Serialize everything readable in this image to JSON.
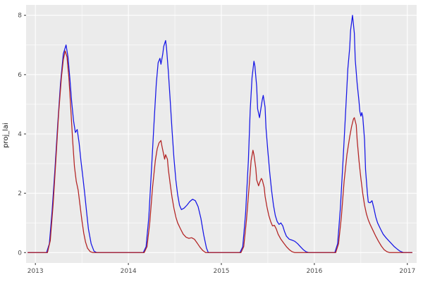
{
  "chart_data": {
    "type": "line",
    "title": "",
    "xlabel": "",
    "ylabel": "proj_lai",
    "style": "ggplot",
    "panel_bg": "#EBEBEB",
    "grid_color": "#FFFFFF",
    "tick_color": "#333333",
    "tick_label_color": "#4d4d4d",
    "legend": "none",
    "xlim": [
      2012.9,
      2017.1
    ],
    "ylim": [
      -0.35,
      8.35
    ],
    "x_ticks": [
      2013,
      2014,
      2015,
      2016,
      2017
    ],
    "x_minor_ticks": [
      2013.5,
      2014.5,
      2015.5,
      2016.5
    ],
    "y_ticks": [
      0,
      2,
      4,
      6,
      8
    ],
    "y_minor_ticks": [
      1,
      3,
      5,
      7
    ],
    "series": [
      {
        "name": "series-blue",
        "color": "#1414E6",
        "points": [
          [
            2012.92,
            0
          ],
          [
            2013.12,
            0
          ],
          [
            2013.15,
            0.3
          ],
          [
            2013.18,
            1.4
          ],
          [
            2013.21,
            2.8
          ],
          [
            2013.24,
            4.3
          ],
          [
            2013.27,
            5.7
          ],
          [
            2013.3,
            6.7
          ],
          [
            2013.33,
            7.0
          ],
          [
            2013.35,
            6.6
          ],
          [
            2013.37,
            5.9
          ],
          [
            2013.39,
            5.1
          ],
          [
            2013.41,
            4.45
          ],
          [
            2013.43,
            4.05
          ],
          [
            2013.45,
            4.15
          ],
          [
            2013.47,
            3.7
          ],
          [
            2013.49,
            3.1
          ],
          [
            2013.51,
            2.55
          ],
          [
            2013.53,
            2.0
          ],
          [
            2013.55,
            1.4
          ],
          [
            2013.57,
            0.8
          ],
          [
            2013.6,
            0.3
          ],
          [
            2013.63,
            0.05
          ],
          [
            2013.66,
            0
          ],
          [
            2014.16,
            0
          ],
          [
            2014.19,
            0.2
          ],
          [
            2014.22,
            1.2
          ],
          [
            2014.25,
            2.9
          ],
          [
            2014.28,
            4.6
          ],
          [
            2014.3,
            5.7
          ],
          [
            2014.32,
            6.4
          ],
          [
            2014.34,
            6.55
          ],
          [
            2014.35,
            6.35
          ],
          [
            2014.37,
            6.7
          ],
          [
            2014.38,
            6.95
          ],
          [
            2014.4,
            7.15
          ],
          [
            2014.41,
            6.9
          ],
          [
            2014.43,
            6.1
          ],
          [
            2014.45,
            5.1
          ],
          [
            2014.47,
            4.1
          ],
          [
            2014.49,
            3.2
          ],
          [
            2014.51,
            2.45
          ],
          [
            2014.53,
            1.95
          ],
          [
            2014.55,
            1.6
          ],
          [
            2014.57,
            1.45
          ],
          [
            2014.6,
            1.5
          ],
          [
            2014.63,
            1.6
          ],
          [
            2014.66,
            1.72
          ],
          [
            2014.69,
            1.8
          ],
          [
            2014.72,
            1.75
          ],
          [
            2014.75,
            1.55
          ],
          [
            2014.78,
            1.15
          ],
          [
            2014.81,
            0.6
          ],
          [
            2014.84,
            0.15
          ],
          [
            2014.86,
            0
          ],
          [
            2015.2,
            0
          ],
          [
            2015.23,
            0.2
          ],
          [
            2015.26,
            1.3
          ],
          [
            2015.29,
            3.1
          ],
          [
            2015.31,
            4.8
          ],
          [
            2015.33,
            5.9
          ],
          [
            2015.35,
            6.45
          ],
          [
            2015.36,
            6.3
          ],
          [
            2015.38,
            5.6
          ],
          [
            2015.39,
            4.85
          ],
          [
            2015.41,
            4.55
          ],
          [
            2015.42,
            4.75
          ],
          [
            2015.44,
            5.15
          ],
          [
            2015.45,
            5.3
          ],
          [
            2015.47,
            4.9
          ],
          [
            2015.48,
            4.2
          ],
          [
            2015.5,
            3.4
          ],
          [
            2015.52,
            2.7
          ],
          [
            2015.54,
            2.1
          ],
          [
            2015.56,
            1.6
          ],
          [
            2015.58,
            1.25
          ],
          [
            2015.6,
            1.05
          ],
          [
            2015.62,
            0.95
          ],
          [
            2015.64,
            1.0
          ],
          [
            2015.66,
            0.9
          ],
          [
            2015.68,
            0.7
          ],
          [
            2015.7,
            0.55
          ],
          [
            2015.73,
            0.45
          ],
          [
            2015.76,
            0.42
          ],
          [
            2015.79,
            0.38
          ],
          [
            2015.82,
            0.3
          ],
          [
            2015.85,
            0.2
          ],
          [
            2015.88,
            0.1
          ],
          [
            2015.91,
            0.03
          ],
          [
            2015.94,
            0
          ],
          [
            2016.22,
            0
          ],
          [
            2016.25,
            0.3
          ],
          [
            2016.28,
            1.5
          ],
          [
            2016.31,
            3.2
          ],
          [
            2016.34,
            5.0
          ],
          [
            2016.36,
            6.2
          ],
          [
            2016.38,
            6.9
          ],
          [
            2016.39,
            7.5
          ],
          [
            2016.41,
            8.0
          ],
          [
            2016.43,
            7.4
          ],
          [
            2016.44,
            6.5
          ],
          [
            2016.46,
            5.7
          ],
          [
            2016.48,
            5.1
          ],
          [
            2016.49,
            4.75
          ],
          [
            2016.5,
            4.6
          ],
          [
            2016.51,
            4.72
          ],
          [
            2016.52,
            4.6
          ],
          [
            2016.54,
            3.8
          ],
          [
            2016.55,
            2.8
          ],
          [
            2016.57,
            2.0
          ],
          [
            2016.58,
            1.7
          ],
          [
            2016.6,
            1.68
          ],
          [
            2016.62,
            1.75
          ],
          [
            2016.64,
            1.5
          ],
          [
            2016.66,
            1.2
          ],
          [
            2016.68,
            1.0
          ],
          [
            2016.71,
            0.8
          ],
          [
            2016.74,
            0.62
          ],
          [
            2016.77,
            0.5
          ],
          [
            2016.8,
            0.4
          ],
          [
            2016.83,
            0.3
          ],
          [
            2016.86,
            0.2
          ],
          [
            2016.89,
            0.12
          ],
          [
            2016.92,
            0.05
          ],
          [
            2016.96,
            0
          ],
          [
            2017.05,
            0
          ]
        ]
      },
      {
        "name": "series-red",
        "color": "#B22222",
        "points": [
          [
            2012.92,
            0
          ],
          [
            2013.13,
            0
          ],
          [
            2013.16,
            0.4
          ],
          [
            2013.19,
            1.6
          ],
          [
            2013.22,
            3.1
          ],
          [
            2013.25,
            4.7
          ],
          [
            2013.28,
            5.9
          ],
          [
            2013.3,
            6.5
          ],
          [
            2013.32,
            6.8
          ],
          [
            2013.34,
            6.6
          ],
          [
            2013.36,
            5.9
          ],
          [
            2013.38,
            4.9
          ],
          [
            2013.4,
            3.8
          ],
          [
            2013.42,
            2.9
          ],
          [
            2013.44,
            2.4
          ],
          [
            2013.46,
            2.1
          ],
          [
            2013.48,
            1.6
          ],
          [
            2013.5,
            1.1
          ],
          [
            2013.52,
            0.65
          ],
          [
            2013.54,
            0.35
          ],
          [
            2013.56,
            0.15
          ],
          [
            2013.59,
            0.03
          ],
          [
            2013.62,
            0
          ],
          [
            2014.17,
            0
          ],
          [
            2014.2,
            0.2
          ],
          [
            2014.23,
            1.0
          ],
          [
            2014.26,
            2.2
          ],
          [
            2014.29,
            3.1
          ],
          [
            2014.31,
            3.5
          ],
          [
            2014.33,
            3.7
          ],
          [
            2014.35,
            3.78
          ],
          [
            2014.36,
            3.6
          ],
          [
            2014.38,
            3.3
          ],
          [
            2014.39,
            3.15
          ],
          [
            2014.4,
            3.3
          ],
          [
            2014.42,
            3.15
          ],
          [
            2014.43,
            2.8
          ],
          [
            2014.45,
            2.3
          ],
          [
            2014.47,
            1.85
          ],
          [
            2014.49,
            1.5
          ],
          [
            2014.51,
            1.2
          ],
          [
            2014.53,
            1.0
          ],
          [
            2014.56,
            0.8
          ],
          [
            2014.59,
            0.62
          ],
          [
            2014.62,
            0.52
          ],
          [
            2014.65,
            0.48
          ],
          [
            2014.68,
            0.5
          ],
          [
            2014.71,
            0.45
          ],
          [
            2014.74,
            0.32
          ],
          [
            2014.77,
            0.18
          ],
          [
            2014.8,
            0.07
          ],
          [
            2014.83,
            0
          ],
          [
            2015.21,
            0
          ],
          [
            2015.24,
            0.2
          ],
          [
            2015.27,
            1.1
          ],
          [
            2015.3,
            2.3
          ],
          [
            2015.32,
            3.1
          ],
          [
            2015.34,
            3.45
          ],
          [
            2015.35,
            3.3
          ],
          [
            2015.37,
            2.85
          ],
          [
            2015.38,
            2.45
          ],
          [
            2015.4,
            2.25
          ],
          [
            2015.41,
            2.35
          ],
          [
            2015.43,
            2.5
          ],
          [
            2015.44,
            2.45
          ],
          [
            2015.46,
            2.2
          ],
          [
            2015.47,
            1.9
          ],
          [
            2015.49,
            1.55
          ],
          [
            2015.51,
            1.25
          ],
          [
            2015.53,
            1.05
          ],
          [
            2015.55,
            0.9
          ],
          [
            2015.57,
            0.92
          ],
          [
            2015.59,
            0.8
          ],
          [
            2015.61,
            0.62
          ],
          [
            2015.64,
            0.45
          ],
          [
            2015.67,
            0.32
          ],
          [
            2015.7,
            0.2
          ],
          [
            2015.73,
            0.1
          ],
          [
            2015.76,
            0.03
          ],
          [
            2015.79,
            0
          ],
          [
            2016.23,
            0
          ],
          [
            2016.26,
            0.3
          ],
          [
            2016.29,
            1.2
          ],
          [
            2016.32,
            2.4
          ],
          [
            2016.35,
            3.3
          ],
          [
            2016.38,
            3.9
          ],
          [
            2016.4,
            4.25
          ],
          [
            2016.42,
            4.5
          ],
          [
            2016.43,
            4.55
          ],
          [
            2016.45,
            4.3
          ],
          [
            2016.46,
            3.8
          ],
          [
            2016.48,
            3.1
          ],
          [
            2016.5,
            2.5
          ],
          [
            2016.52,
            2.0
          ],
          [
            2016.54,
            1.6
          ],
          [
            2016.56,
            1.3
          ],
          [
            2016.58,
            1.1
          ],
          [
            2016.6,
            0.95
          ],
          [
            2016.63,
            0.75
          ],
          [
            2016.66,
            0.55
          ],
          [
            2016.69,
            0.38
          ],
          [
            2016.72,
            0.22
          ],
          [
            2016.75,
            0.1
          ],
          [
            2016.78,
            0.03
          ],
          [
            2016.81,
            0
          ],
          [
            2017.05,
            0
          ]
        ]
      }
    ]
  }
}
